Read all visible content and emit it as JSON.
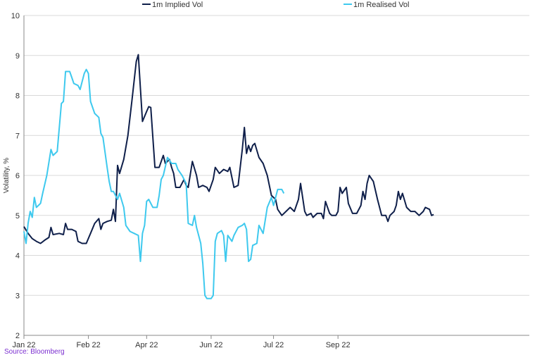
{
  "chart_data": {
    "type": "line",
    "title": "",
    "xlabel": "",
    "ylabel": "Volatility, %",
    "ylim": [
      2,
      10
    ],
    "y_ticks": [
      "2",
      "3",
      "4",
      "5",
      "6",
      "7",
      "8",
      "9",
      "10"
    ],
    "x_range": [
      "2022-01-01",
      "2022-09-01"
    ],
    "x_ticks": [
      {
        "date": "2022-01-01",
        "label": "Jan 22"
      },
      {
        "date": "2022-02-01",
        "label": "Feb 22"
      },
      {
        "date": "2022-03-01",
        "label": "Apr 22"
      },
      {
        "date": "2022-04-01",
        "label": "Jun 22"
      },
      {
        "date": "2022-05-01",
        "label": "Jul 22"
      },
      {
        "date": "2022-06-01",
        "label": "Sep 22"
      }
    ],
    "grid": true,
    "legend_position": "top",
    "series": [
      {
        "name": "1m Implied Vol",
        "color": "#0f1f4a",
        "points": [
          [
            "2022-01-01",
            4.72
          ],
          [
            "2022-01-03",
            4.55
          ],
          [
            "2022-01-05",
            4.42
          ],
          [
            "2022-01-07",
            4.35
          ],
          [
            "2022-01-09",
            4.3
          ],
          [
            "2022-01-11",
            4.38
          ],
          [
            "2022-01-13",
            4.45
          ],
          [
            "2022-01-14",
            4.7
          ],
          [
            "2022-01-15",
            4.52
          ],
          [
            "2022-01-18",
            4.55
          ],
          [
            "2022-01-20",
            4.52
          ],
          [
            "2022-01-21",
            4.8
          ],
          [
            "2022-01-22",
            4.65
          ],
          [
            "2022-01-24",
            4.65
          ],
          [
            "2022-01-26",
            4.6
          ],
          [
            "2022-01-27",
            4.35
          ],
          [
            "2022-01-29",
            4.3
          ],
          [
            "2022-01-31",
            4.3
          ],
          [
            "2022-02-02",
            4.55
          ],
          [
            "2022-02-04",
            4.8
          ],
          [
            "2022-02-06",
            4.92
          ],
          [
            "2022-02-07",
            4.65
          ],
          [
            "2022-02-08",
            4.8
          ],
          [
            "2022-02-10",
            4.85
          ],
          [
            "2022-02-12",
            4.88
          ],
          [
            "2022-02-13",
            5.15
          ],
          [
            "2022-02-14",
            4.85
          ],
          [
            "2022-02-15",
            6.25
          ],
          [
            "2022-02-16",
            6.05
          ],
          [
            "2022-02-18",
            6.4
          ],
          [
            "2022-02-20",
            7.0
          ],
          [
            "2022-02-22",
            7.9
          ],
          [
            "2022-02-24",
            8.85
          ],
          [
            "2022-02-25",
            9.02
          ],
          [
            "2022-02-27",
            7.35
          ],
          [
            "2022-03-01",
            7.6
          ],
          [
            "2022-03-02",
            7.72
          ],
          [
            "2022-03-03",
            7.7
          ],
          [
            "2022-03-05",
            6.2
          ],
          [
            "2022-03-07",
            6.2
          ],
          [
            "2022-03-09",
            6.5
          ],
          [
            "2022-03-10",
            6.3
          ],
          [
            "2022-03-12",
            6.4
          ],
          [
            "2022-03-13",
            6.2
          ],
          [
            "2022-03-14",
            6.05
          ],
          [
            "2022-03-15",
            5.7
          ],
          [
            "2022-03-17",
            5.7
          ],
          [
            "2022-03-19",
            5.9
          ],
          [
            "2022-03-20",
            5.75
          ],
          [
            "2022-03-21",
            5.7
          ],
          [
            "2022-03-23",
            6.35
          ],
          [
            "2022-03-25",
            6.0
          ],
          [
            "2022-03-26",
            5.7
          ],
          [
            "2022-03-28",
            5.75
          ],
          [
            "2022-03-30",
            5.7
          ],
          [
            "2022-03-31",
            5.6
          ],
          [
            "2022-04-02",
            5.9
          ],
          [
            "2022-04-03",
            6.2
          ],
          [
            "2022-04-05",
            6.05
          ],
          [
            "2022-04-07",
            6.15
          ],
          [
            "2022-04-09",
            6.1
          ],
          [
            "2022-04-10",
            6.2
          ],
          [
            "2022-04-12",
            5.7
          ],
          [
            "2022-04-14",
            5.75
          ],
          [
            "2022-04-16",
            6.65
          ],
          [
            "2022-04-17",
            7.2
          ],
          [
            "2022-04-18",
            6.55
          ],
          [
            "2022-04-19",
            6.75
          ],
          [
            "2022-04-20",
            6.6
          ],
          [
            "2022-04-21",
            6.75
          ],
          [
            "2022-04-22",
            6.8
          ],
          [
            "2022-04-24",
            6.45
          ],
          [
            "2022-04-26",
            6.3
          ],
          [
            "2022-04-28",
            6.0
          ],
          [
            "2022-04-30",
            5.5
          ],
          [
            "2022-05-02",
            5.4
          ],
          [
            "2022-05-03",
            5.15
          ],
          [
            "2022-05-05",
            5.0
          ],
          [
            "2022-05-07",
            5.1
          ],
          [
            "2022-05-09",
            5.2
          ],
          [
            "2022-05-11",
            5.1
          ],
          [
            "2022-05-13",
            5.4
          ],
          [
            "2022-05-14",
            5.8
          ],
          [
            "2022-05-16",
            5.1
          ],
          [
            "2022-05-17",
            5.0
          ],
          [
            "2022-05-19",
            5.05
          ],
          [
            "2022-05-20",
            4.95
          ],
          [
            "2022-05-22",
            5.05
          ],
          [
            "2022-05-24",
            5.05
          ],
          [
            "2022-05-25",
            4.92
          ],
          [
            "2022-05-26",
            5.35
          ],
          [
            "2022-05-28",
            5.05
          ],
          [
            "2022-05-29",
            5.0
          ],
          [
            "2022-05-31",
            5.0
          ],
          [
            "2022-06-01",
            5.1
          ],
          [
            "2022-06-02",
            5.7
          ],
          [
            "2022-06-03",
            5.55
          ],
          [
            "2022-06-05",
            5.7
          ],
          [
            "2022-06-06",
            5.3
          ],
          [
            "2022-06-08",
            5.05
          ],
          [
            "2022-06-10",
            5.05
          ],
          [
            "2022-06-12",
            5.25
          ],
          [
            "2022-06-13",
            5.6
          ],
          [
            "2022-06-14",
            5.4
          ],
          [
            "2022-06-15",
            5.8
          ],
          [
            "2022-06-16",
            6.0
          ],
          [
            "2022-06-18",
            5.85
          ],
          [
            "2022-06-20",
            5.4
          ],
          [
            "2022-06-22",
            5.0
          ],
          [
            "2022-06-24",
            5.0
          ],
          [
            "2022-06-25",
            4.85
          ],
          [
            "2022-06-26",
            5.0
          ],
          [
            "2022-06-28",
            5.1
          ],
          [
            "2022-06-29",
            5.25
          ],
          [
            "2022-06-30",
            5.6
          ],
          [
            "2022-07-01",
            5.4
          ],
          [
            "2022-07-02",
            5.55
          ],
          [
            "2022-07-04",
            5.2
          ],
          [
            "2022-07-06",
            5.1
          ],
          [
            "2022-07-08",
            5.1
          ],
          [
            "2022-07-10",
            5.0
          ],
          [
            "2022-07-12",
            5.1
          ],
          [
            "2022-07-13",
            5.2
          ],
          [
            "2022-07-15",
            5.15
          ],
          [
            "2022-07-16",
            5.0
          ],
          [
            "2022-07-17",
            5.02
          ]
        ]
      },
      {
        "name": "1m Realised Vol",
        "color": "#3ec9ee",
        "points": [
          [
            "2022-01-01",
            4.6
          ],
          [
            "2022-01-02",
            4.3
          ],
          [
            "2022-01-03",
            4.8
          ],
          [
            "2022-01-04",
            5.1
          ],
          [
            "2022-01-05",
            4.95
          ],
          [
            "2022-01-06",
            5.45
          ],
          [
            "2022-01-07",
            5.2
          ],
          [
            "2022-01-09",
            5.3
          ],
          [
            "2022-01-10",
            5.55
          ],
          [
            "2022-01-12",
            6.0
          ],
          [
            "2022-01-14",
            6.65
          ],
          [
            "2022-01-15",
            6.5
          ],
          [
            "2022-01-17",
            6.6
          ],
          [
            "2022-01-19",
            7.8
          ],
          [
            "2022-01-20",
            7.85
          ],
          [
            "2022-01-21",
            8.6
          ],
          [
            "2022-01-23",
            8.6
          ],
          [
            "2022-01-24",
            8.45
          ],
          [
            "2022-01-25",
            8.3
          ],
          [
            "2022-01-27",
            8.25
          ],
          [
            "2022-01-28",
            8.15
          ],
          [
            "2022-01-30",
            8.55
          ],
          [
            "2022-01-31",
            8.65
          ],
          [
            "2022-02-01",
            8.55
          ],
          [
            "2022-02-02",
            7.85
          ],
          [
            "2022-02-04",
            7.55
          ],
          [
            "2022-02-06",
            7.45
          ],
          [
            "2022-02-07",
            7.05
          ],
          [
            "2022-02-08",
            6.95
          ],
          [
            "2022-02-10",
            6.2
          ],
          [
            "2022-02-11",
            5.85
          ],
          [
            "2022-02-12",
            5.6
          ],
          [
            "2022-02-13",
            5.6
          ],
          [
            "2022-02-15",
            5.4
          ],
          [
            "2022-02-16",
            5.55
          ],
          [
            "2022-02-18",
            5.2
          ],
          [
            "2022-02-19",
            4.75
          ],
          [
            "2022-02-21",
            4.6
          ],
          [
            "2022-02-23",
            4.55
          ],
          [
            "2022-02-25",
            4.5
          ],
          [
            "2022-02-26",
            3.85
          ],
          [
            "2022-02-27",
            4.55
          ],
          [
            "2022-02-28",
            4.75
          ],
          [
            "2022-03-01",
            5.35
          ],
          [
            "2022-03-02",
            5.4
          ],
          [
            "2022-03-04",
            5.2
          ],
          [
            "2022-03-06",
            5.2
          ],
          [
            "2022-03-07",
            5.5
          ],
          [
            "2022-03-08",
            5.9
          ],
          [
            "2022-03-09",
            6.0
          ],
          [
            "2022-03-11",
            6.45
          ],
          [
            "2022-03-13",
            6.3
          ],
          [
            "2022-03-15",
            6.3
          ],
          [
            "2022-03-16",
            6.15
          ],
          [
            "2022-03-18",
            6.0
          ],
          [
            "2022-03-20",
            5.8
          ],
          [
            "2022-03-21",
            4.8
          ],
          [
            "2022-03-23",
            4.75
          ],
          [
            "2022-03-24",
            5.0
          ],
          [
            "2022-03-25",
            4.7
          ],
          [
            "2022-03-27",
            4.3
          ],
          [
            "2022-03-28",
            3.8
          ],
          [
            "2022-03-29",
            3.0
          ],
          [
            "2022-03-30",
            2.92
          ],
          [
            "2022-04-01",
            2.92
          ],
          [
            "2022-04-02",
            3.0
          ],
          [
            "2022-04-03",
            4.35
          ],
          [
            "2022-04-04",
            4.55
          ],
          [
            "2022-04-06",
            4.62
          ],
          [
            "2022-04-07",
            4.5
          ],
          [
            "2022-04-08",
            3.85
          ],
          [
            "2022-04-09",
            4.5
          ],
          [
            "2022-04-11",
            4.35
          ],
          [
            "2022-04-12",
            4.5
          ],
          [
            "2022-04-14",
            4.7
          ],
          [
            "2022-04-16",
            4.75
          ],
          [
            "2022-04-17",
            4.8
          ],
          [
            "2022-04-18",
            4.65
          ],
          [
            "2022-04-19",
            3.85
          ],
          [
            "2022-04-20",
            3.9
          ],
          [
            "2022-04-21",
            4.25
          ],
          [
            "2022-04-23",
            4.3
          ],
          [
            "2022-04-24",
            4.75
          ],
          [
            "2022-04-26",
            4.55
          ],
          [
            "2022-04-28",
            5.2
          ],
          [
            "2022-04-30",
            5.45
          ],
          [
            "2022-05-01",
            5.25
          ],
          [
            "2022-05-03",
            5.65
          ],
          [
            "2022-05-05",
            5.65
          ],
          [
            "2022-05-06",
            5.55
          ]
        ]
      }
    ],
    "source": "Source: Bloomberg"
  }
}
